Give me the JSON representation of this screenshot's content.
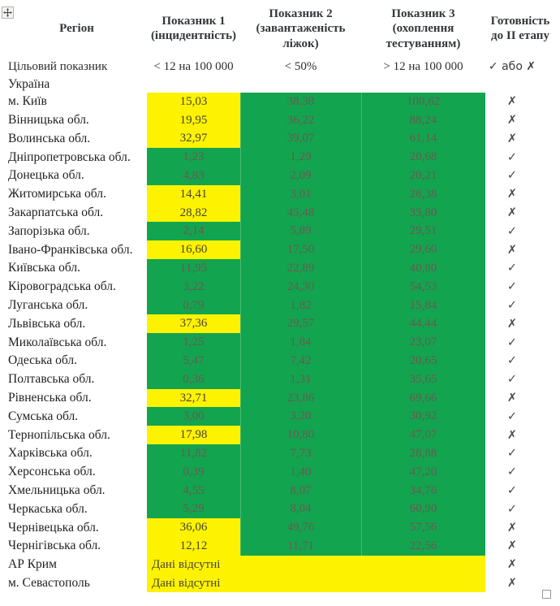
{
  "colors": {
    "green": "#13a44f",
    "yellow": "#fdf300",
    "text_on_green": "#6a5a52",
    "text_on_yellow": "#474334",
    "header_text": "#34383b",
    "region_text": "#1f1f1f",
    "mark": "#4b4b4b"
  },
  "handles": {
    "move_handle": "table-move-cross",
    "resize_handle": "table-resize-square"
  },
  "table": {
    "headers": {
      "region": "Регіон",
      "indicator1": "Показник 1 (інцидентність)",
      "indicator2": "Показник 2 (завантаженість ліжок)",
      "indicator3": "Показник 3 (охоплення тестуванням)",
      "readiness": "Готовність до ІІ етапу"
    },
    "target_row": {
      "label": "Цільовий показник",
      "indicator1": "< 12 на 100 000",
      "indicator2": "< 50%",
      "indicator3": "> 12 на 100 000",
      "readiness": "✓ або ✗"
    },
    "country_row": {
      "label": "Україна"
    },
    "no_data_text": "Дані відсутні",
    "marks": {
      "ready": "✓",
      "not_ready": "✗"
    },
    "rows": [
      {
        "region": "м. Київ",
        "v1": "15,03",
        "v1_state": "yellow",
        "v2": "38,38",
        "v3": "100,62",
        "ready": false
      },
      {
        "region": "Вінницька обл.",
        "v1": "19,95",
        "v1_state": "yellow",
        "v2": "36,22",
        "v3": "88,24",
        "ready": false
      },
      {
        "region": "Волинська обл.",
        "v1": "32,97",
        "v1_state": "yellow",
        "v2": "39,07",
        "v3": "61,14",
        "ready": false
      },
      {
        "region": "Дніпропетровська обл.",
        "v1": "1,23",
        "v1_state": "green",
        "v2": "1,29",
        "v3": "20,68",
        "ready": true
      },
      {
        "region": "Донецька обл.",
        "v1": "4,83",
        "v1_state": "green",
        "v2": "2,09",
        "v3": "20,21",
        "ready": true
      },
      {
        "region": "Житомирська обл.",
        "v1": "14,41",
        "v1_state": "yellow",
        "v2": "3,01",
        "v3": "28,38",
        "ready": false
      },
      {
        "region": "Закарпатська обл.",
        "v1": "28,82",
        "v1_state": "yellow",
        "v2": "45,48",
        "v3": "35,80",
        "ready": false
      },
      {
        "region": "Запорізька обл.",
        "v1": "2,14",
        "v1_state": "green",
        "v2": "5,89",
        "v3": "29,51",
        "ready": true
      },
      {
        "region": "Івано-Франківська обл.",
        "v1": "16,60",
        "v1_state": "yellow",
        "v2": "17,50",
        "v3": "29,60",
        "ready": false
      },
      {
        "region": "Київська обл.",
        "v1": "11,95",
        "v1_state": "green",
        "v2": "22,89",
        "v3": "40,80",
        "ready": true
      },
      {
        "region": "Кіровоградська обл.",
        "v1": "3,22",
        "v1_state": "green",
        "v2": "24,30",
        "v3": "54,53",
        "ready": true
      },
      {
        "region": "Луганська обл.",
        "v1": "0,79",
        "v1_state": "green",
        "v2": "1,82",
        "v3": "15,84",
        "ready": true
      },
      {
        "region": "Львівська обл.",
        "v1": "37,36",
        "v1_state": "yellow",
        "v2": "29,57",
        "v3": "44,44",
        "ready": false
      },
      {
        "region": "Миколаївська обл.",
        "v1": "1,25",
        "v1_state": "green",
        "v2": "1,84",
        "v3": "23,07",
        "ready": true
      },
      {
        "region": "Одеська обл.",
        "v1": "5,47",
        "v1_state": "green",
        "v2": "7,42",
        "v3": "20,65",
        "ready": true
      },
      {
        "region": "Полтавська обл.",
        "v1": "0,36",
        "v1_state": "green",
        "v2": "1,31",
        "v3": "35,65",
        "ready": true
      },
      {
        "region": "Рівненська обл.",
        "v1": "32,71",
        "v1_state": "yellow",
        "v2": "23,86",
        "v3": "69,66",
        "ready": false
      },
      {
        "region": "Сумська обл.",
        "v1": "3,00",
        "v1_state": "green",
        "v2": "3,20",
        "v3": "30,92",
        "ready": true
      },
      {
        "region": "Тернопільська обл.",
        "v1": "17,98",
        "v1_state": "yellow",
        "v2": "10,80",
        "v3": "47,07",
        "ready": false
      },
      {
        "region": "Харківська обл.",
        "v1": "11,82",
        "v1_state": "green",
        "v2": "7,73",
        "v3": "28,88",
        "ready": true
      },
      {
        "region": "Херсонська обл.",
        "v1": "0,39",
        "v1_state": "green",
        "v2": "1,40",
        "v3": "47,20",
        "ready": true
      },
      {
        "region": "Хмельницька обл.",
        "v1": "4,55",
        "v1_state": "green",
        "v2": "8,07",
        "v3": "34,76",
        "ready": true
      },
      {
        "region": "Черкаська обл.",
        "v1": "5,29",
        "v1_state": "green",
        "v2": "8,04",
        "v3": "60,90",
        "ready": true
      },
      {
        "region": "Чернівецька обл.",
        "v1": "36,06",
        "v1_state": "yellow",
        "v2": "49,76",
        "v3": "57,56",
        "ready": false
      },
      {
        "region": "Чернігівська обл.",
        "v1": "12,12",
        "v1_state": "yellow",
        "v2": "11,71",
        "v3": "22,56",
        "ready": false
      },
      {
        "region": "АР Крим",
        "no_data": true,
        "ready": false
      },
      {
        "region": "м. Севастополь",
        "no_data": true,
        "ready": false
      }
    ]
  }
}
